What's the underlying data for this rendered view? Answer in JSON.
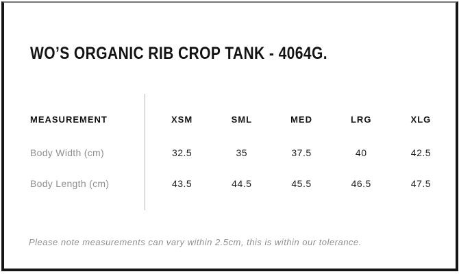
{
  "page": {
    "title": "WO’S ORGANIC RIB CROP TANK - 4064G."
  },
  "size_table": {
    "measurement_header": "MEASUREMENT",
    "size_headers": [
      "XSM",
      "SML",
      "MED",
      "LRG",
      "XLG"
    ],
    "rows": [
      {
        "label": "Body Width (cm)",
        "values": [
          "32.5",
          "35",
          "37.5",
          "40",
          "42.5"
        ]
      },
      {
        "label": "Body Length (cm)",
        "values": [
          "43.5",
          "44.5",
          "45.5",
          "46.5",
          "47.5"
        ]
      }
    ]
  },
  "footer": {
    "note": "Please note measurements can vary within 2.5cm, this is within our tolerance."
  },
  "colors": {
    "border": "#161616",
    "heading_text": "#121212",
    "label_text": "#8e8e8e",
    "value_text": "#1d1d1d",
    "divider": "#b4b4b4",
    "note_text": "#8f8f8f",
    "background": "#ffffff"
  }
}
